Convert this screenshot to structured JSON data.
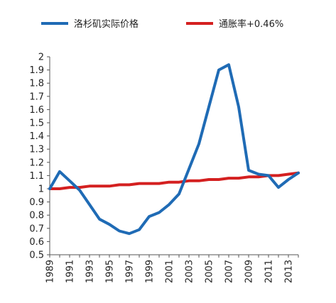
{
  "chart_data": {
    "type": "line",
    "x": [
      1989,
      1990,
      1991,
      1992,
      1993,
      1994,
      1995,
      1996,
      1997,
      1998,
      1999,
      2000,
      2001,
      2002,
      2003,
      2004,
      2005,
      2006,
      2007,
      2008,
      2009,
      2010,
      2011,
      2012,
      2013,
      2014
    ],
    "x_tick_labels": [
      "1989",
      "1991",
      "1993",
      "1995",
      "1997",
      "1999",
      "2001",
      "2003",
      "2005",
      "2007",
      "2009",
      "2011",
      "2013"
    ],
    "y_tick_labels": [
      "0.5",
      "0.6",
      "0.7",
      "0.8",
      "0.9",
      "1",
      "1.1",
      "1.2",
      "1.3",
      "1.4",
      "1.5",
      "1.6",
      "1.7",
      "1.8",
      "1.9",
      "2"
    ],
    "ylim": [
      0.5,
      2.0
    ],
    "grid": false,
    "legend_position": "top",
    "series": [
      {
        "name": "洛杉矶实际价格",
        "color": "#1f6bb5",
        "values": [
          1.0,
          1.13,
          1.06,
          0.99,
          0.88,
          0.77,
          0.73,
          0.68,
          0.66,
          0.69,
          0.79,
          0.82,
          0.88,
          0.96,
          1.15,
          1.34,
          1.62,
          1.9,
          1.94,
          1.62,
          1.14,
          1.11,
          1.1,
          1.01,
          1.07,
          1.12
        ]
      },
      {
        "name": "通胀率+0.46%",
        "color": "#d42020",
        "values": [
          1.0,
          1.0,
          1.01,
          1.01,
          1.02,
          1.02,
          1.02,
          1.03,
          1.03,
          1.04,
          1.04,
          1.04,
          1.05,
          1.05,
          1.06,
          1.06,
          1.07,
          1.07,
          1.08,
          1.08,
          1.09,
          1.09,
          1.1,
          1.1,
          1.11,
          1.12
        ]
      }
    ]
  }
}
